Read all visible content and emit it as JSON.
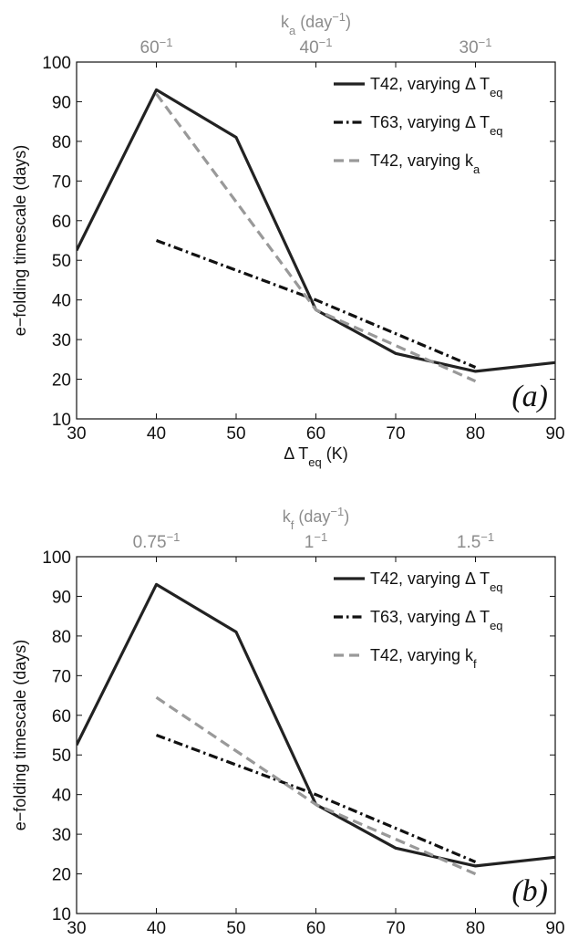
{
  "chart_data": [
    {
      "type": "line",
      "panel_label": "(a)",
      "xlabel": "Δ T",
      "xlabel_sub": "eq",
      "xlabel_tail": " (K)",
      "ylabel": "e−folding timescale (days)",
      "xlim": [
        30,
        90
      ],
      "ylim": [
        10,
        100
      ],
      "xticks": [
        30,
        40,
        50,
        60,
        70,
        80,
        90
      ],
      "yticks": [
        10,
        20,
        30,
        40,
        50,
        60,
        70,
        80,
        90,
        100
      ],
      "top_axis": {
        "label": "k",
        "label_sub": "a",
        "label_tail": " (day",
        "label_sup": "−1",
        "label_close": ")",
        "ticks": [
          {
            "x": 40,
            "base": "60",
            "sup": "−1"
          },
          {
            "x": 60,
            "base": "40",
            "sup": "−1"
          },
          {
            "x": 80,
            "base": "30",
            "sup": "−1"
          }
        ]
      },
      "legend_position": "top-right",
      "series": [
        {
          "name": "T42, varying Δ T",
          "name_sub": "eq",
          "style": "solid",
          "color": "#222222",
          "x": [
            30,
            40,
            50,
            60,
            70,
            80,
            90
          ],
          "y": [
            52.5,
            93,
            81,
            37.5,
            26.5,
            22,
            24.2
          ]
        },
        {
          "name": "T63, varying Δ T",
          "name_sub": "eq",
          "style": "dashdot",
          "color": "#111111",
          "x": [
            40,
            60,
            80
          ],
          "y": [
            55,
            40,
            23
          ]
        },
        {
          "name": "T42, varying k",
          "name_sub": "a",
          "style": "dashed",
          "color": "#999999",
          "x": [
            40,
            60,
            80
          ],
          "y": [
            92,
            37.5,
            19.5
          ]
        }
      ]
    },
    {
      "type": "line",
      "panel_label": "(b)",
      "xlabel": "Δ T",
      "xlabel_sub": "eq",
      "xlabel_tail": " (K)",
      "ylabel": "e−folding timescale (days)",
      "xlim": [
        30,
        90
      ],
      "ylim": [
        10,
        100
      ],
      "xticks": [
        30,
        40,
        50,
        60,
        70,
        80,
        90
      ],
      "yticks": [
        10,
        20,
        30,
        40,
        50,
        60,
        70,
        80,
        90,
        100
      ],
      "top_axis": {
        "label": "k",
        "label_sub": "f",
        "label_tail": " (day",
        "label_sup": "−1",
        "label_close": ")",
        "ticks": [
          {
            "x": 40,
            "base": "0.75",
            "sup": "−1"
          },
          {
            "x": 60,
            "base": "1",
            "sup": "−1"
          },
          {
            "x": 80,
            "base": "1.5",
            "sup": "−1"
          }
        ]
      },
      "legend_position": "top-right",
      "series": [
        {
          "name": "T42, varying Δ T",
          "name_sub": "eq",
          "style": "solid",
          "color": "#222222",
          "x": [
            30,
            40,
            50,
            60,
            70,
            80,
            90
          ],
          "y": [
            52.5,
            93,
            81,
            37.5,
            26.5,
            22,
            24.2
          ]
        },
        {
          "name": "T63, varying Δ T",
          "name_sub": "eq",
          "style": "dashdot",
          "color": "#111111",
          "x": [
            40,
            60,
            80
          ],
          "y": [
            55,
            40,
            23
          ]
        },
        {
          "name": "T42, varying k",
          "name_sub": "f",
          "style": "dashed",
          "color": "#999999",
          "x": [
            40,
            60,
            80
          ],
          "y": [
            64.5,
            37.5,
            20
          ]
        }
      ]
    }
  ]
}
